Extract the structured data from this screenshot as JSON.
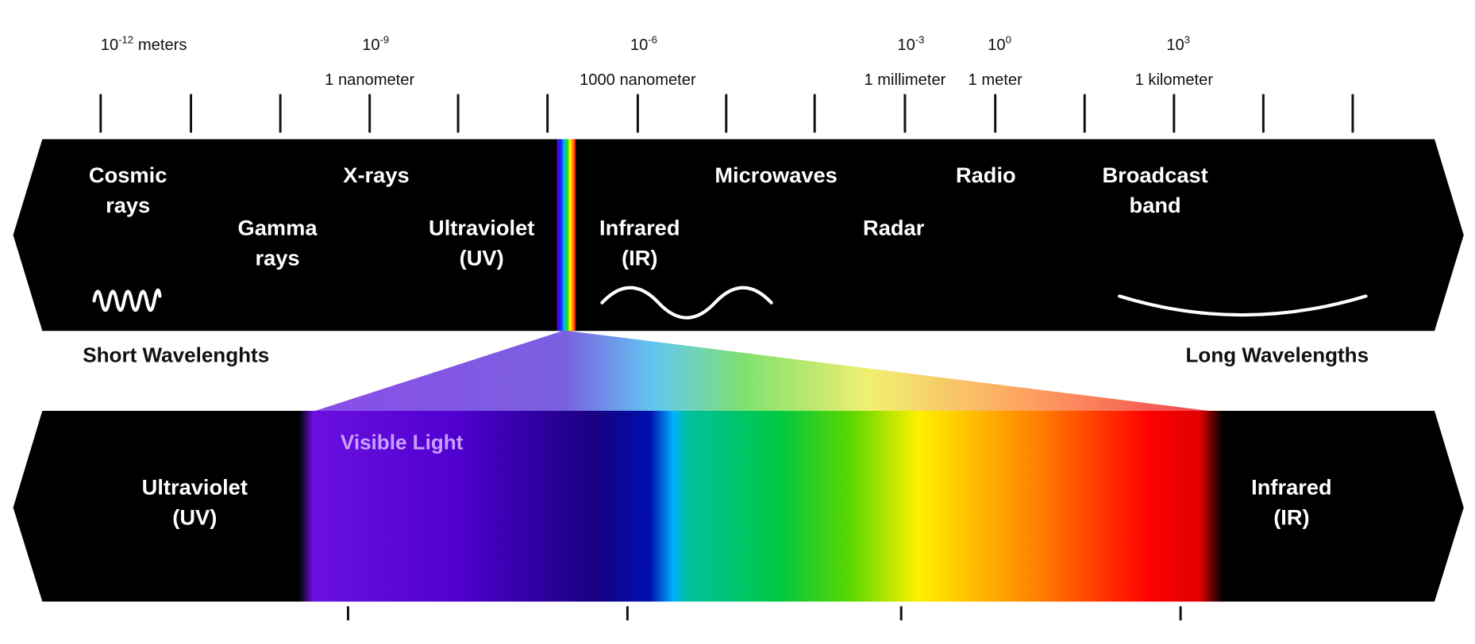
{
  "scale": [
    {
      "base": "10",
      "exponent": "-12",
      "unit": "meters"
    },
    {
      "base": "10",
      "exponent": "-9",
      "name": "1 nanometer"
    },
    {
      "base": "10",
      "exponent": "-6",
      "name": "1000 nanometer"
    },
    {
      "base": "10",
      "exponent": "-3",
      "name": "1 millimeter"
    },
    {
      "base": "10",
      "exponent": "0",
      "name": "1 meter"
    },
    {
      "base": "10",
      "exponent": "3",
      "name": "1 kilometer"
    }
  ],
  "bands": [
    {
      "lines": [
        "Cosmic",
        "rays"
      ]
    },
    {
      "lines": [
        "Gamma",
        "rays"
      ]
    },
    {
      "lines": [
        "X-rays"
      ]
    },
    {
      "lines": [
        "Ultraviolet",
        "(UV)"
      ]
    },
    {
      "lines": [
        "Infrared",
        "(IR)"
      ]
    },
    {
      "lines": [
        "Microwaves"
      ]
    },
    {
      "lines": [
        "Radar"
      ]
    },
    {
      "lines": [
        "Radio"
      ]
    },
    {
      "lines": [
        "Broadcast",
        "band"
      ]
    }
  ],
  "short_label": "Short Wavelenghts",
  "long_label": "Long Wavelengths",
  "visible": {
    "title": "Visible Light",
    "left": [
      "Ultraviolet",
      "(UV)"
    ],
    "right": [
      "Infrared",
      "(IR)"
    ]
  }
}
